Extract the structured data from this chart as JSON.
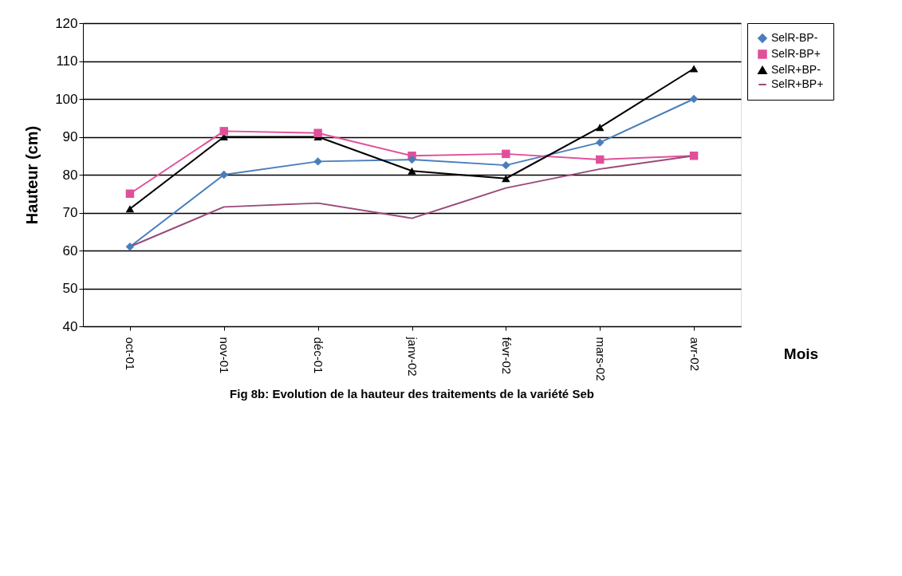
{
  "chart_data": {
    "type": "line",
    "xlabel": "Mois",
    "ylabel": "Hauteur (cm)",
    "categories": [
      "oct-01",
      "nov-01",
      "déc-01",
      "janv-02",
      "févr-02",
      "mars-02",
      "avr-02"
    ],
    "series": [
      {
        "name": "SelR-BP-",
        "color": "#4a7ebb",
        "marker": "diamond",
        "values": [
          61,
          80,
          83.5,
          84,
          82.5,
          88.5,
          100
        ]
      },
      {
        "name": "SelR-BP+",
        "color": "#e0509a",
        "marker": "square",
        "values": [
          75,
          91.5,
          91,
          85,
          85.5,
          84,
          85
        ]
      },
      {
        "name": "SelR+BP-",
        "color": "#000000",
        "marker": "triangle",
        "values": [
          71,
          90,
          90,
          81,
          79,
          92.5,
          108
        ]
      },
      {
        "name": "SelR+BP+",
        "color": "#9a4a7a",
        "marker": "none",
        "values": [
          61,
          71.5,
          72.5,
          68.5,
          76.5,
          81.5,
          85
        ]
      }
    ],
    "ylim": [
      40,
      120
    ],
    "yticks": [
      40,
      50,
      60,
      70,
      80,
      90,
      100,
      110,
      120
    ],
    "grid": "y",
    "legend": "right",
    "annotations": [
      "Fig 8b: Evolution de la hauteur des traitements de la variété Seb"
    ]
  }
}
